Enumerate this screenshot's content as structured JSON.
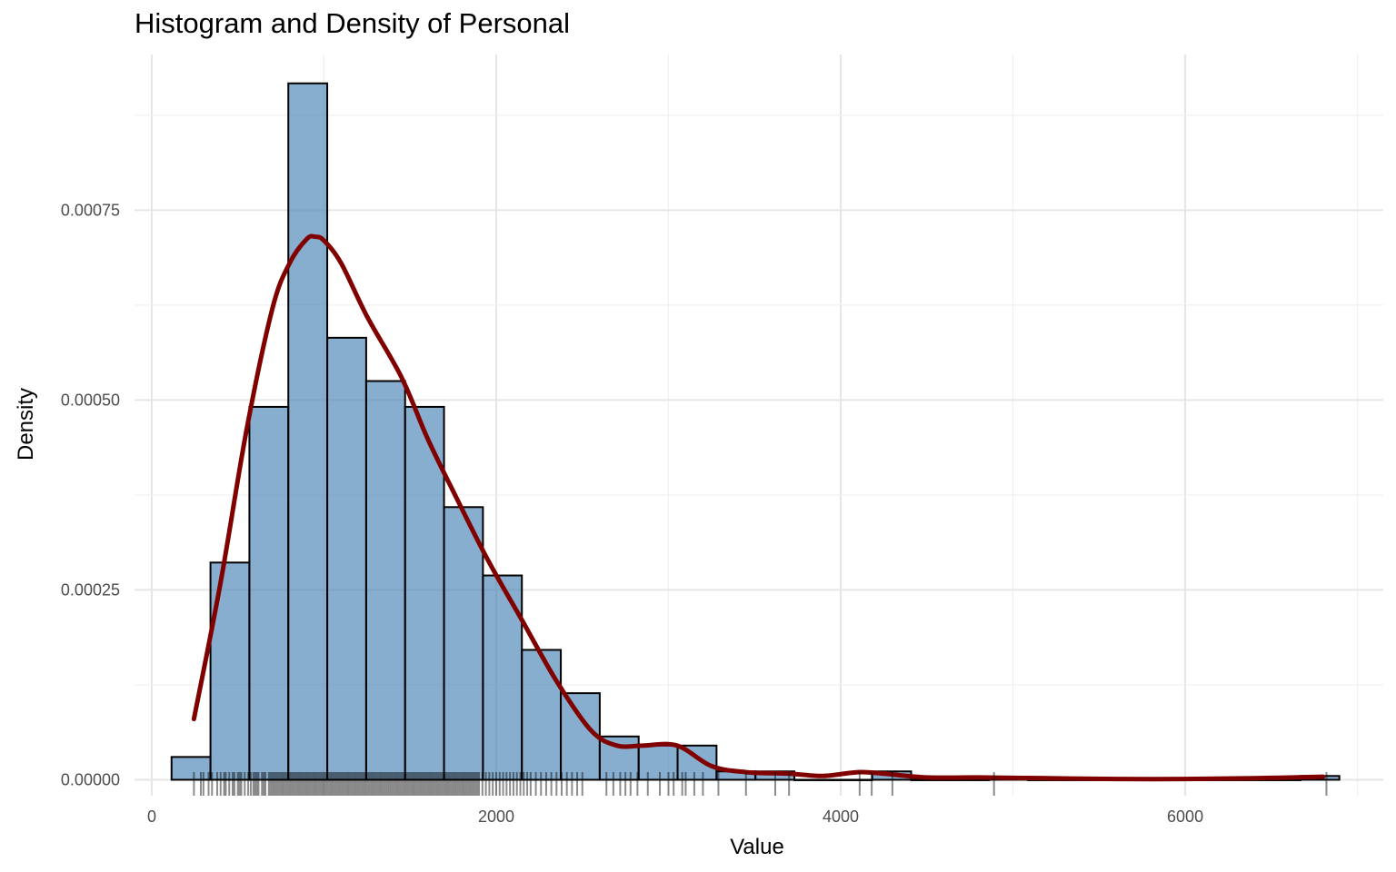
{
  "chart_data": {
    "type": "histogram",
    "title": "Histogram and Density of Personal",
    "xlabel": "Value",
    "ylabel": "Density",
    "xlim": [
      -100,
      7150
    ],
    "ylim": [
      -2.1e-05,
      0.000955
    ],
    "x_ticks": [
      0,
      2000,
      4000,
      6000
    ],
    "x_tick_labels": [
      "0",
      "2000",
      "4000",
      "6000"
    ],
    "y_ticks": [
      0,
      0.00025,
      0.0005,
      0.00075
    ],
    "y_tick_labels": [
      "0.00000",
      "0.00025",
      "0.00050",
      "0.00075"
    ],
    "grid": true,
    "bin_width": 226,
    "bins": [
      {
        "x0": 115,
        "x1": 341,
        "density": 3e-05
      },
      {
        "x0": 341,
        "x1": 567,
        "density": 0.000286
      },
      {
        "x0": 567,
        "x1": 793,
        "density": 0.000491
      },
      {
        "x0": 793,
        "x1": 1019,
        "density": 0.000917
      },
      {
        "x0": 1019,
        "x1": 1245,
        "density": 0.000582
      },
      {
        "x0": 1245,
        "x1": 1471,
        "density": 0.000525
      },
      {
        "x0": 1471,
        "x1": 1697,
        "density": 0.000491
      },
      {
        "x0": 1697,
        "x1": 1923,
        "density": 0.000359
      },
      {
        "x0": 1923,
        "x1": 2149,
        "density": 0.000269
      },
      {
        "x0": 2149,
        "x1": 2375,
        "density": 0.000171
      },
      {
        "x0": 2375,
        "x1": 2601,
        "density": 0.000114
      },
      {
        "x0": 2601,
        "x1": 2827,
        "density": 5.7e-05
      },
      {
        "x0": 2827,
        "x1": 3053,
        "density": 4.5e-05
      },
      {
        "x0": 3053,
        "x1": 3279,
        "density": 4.5e-05
      },
      {
        "x0": 3279,
        "x1": 3505,
        "density": 1.1e-05
      },
      {
        "x0": 3505,
        "x1": 3731,
        "density": 1.1e-05
      },
      {
        "x0": 3731,
        "x1": 3957,
        "density": 0.0
      },
      {
        "x0": 3957,
        "x1": 4183,
        "density": 0.0
      },
      {
        "x0": 4183,
        "x1": 4409,
        "density": 1.1e-05
      },
      {
        "x0": 4409,
        "x1": 4635,
        "density": 0.0
      },
      {
        "x0": 4635,
        "x1": 4861,
        "density": 0.0
      },
      {
        "x0": 4861,
        "x1": 5087,
        "density": 4e-06
      },
      {
        "x0": 5087,
        "x1": 5313,
        "density": 0.0
      },
      {
        "x0": 5313,
        "x1": 5539,
        "density": 0.0
      },
      {
        "x0": 5539,
        "x1": 5765,
        "density": 0.0
      },
      {
        "x0": 5765,
        "x1": 5991,
        "density": 0.0
      },
      {
        "x0": 5991,
        "x1": 6217,
        "density": 0.0
      },
      {
        "x0": 6217,
        "x1": 6443,
        "density": 0.0
      },
      {
        "x0": 6443,
        "x1": 6669,
        "density": 0.0
      },
      {
        "x0": 6669,
        "x1": 6895,
        "density": 5e-06
      }
    ],
    "density_curve": {
      "x": [
        245,
        400,
        550,
        700,
        800,
        900,
        950,
        1000,
        1100,
        1250,
        1450,
        1600,
        1750,
        1950,
        2150,
        2350,
        2550,
        2700,
        2850,
        3050,
        3250,
        3450,
        3700,
        3900,
        4100,
        4250,
        4500,
        4800,
        5200,
        5600,
        6000,
        6400,
        6800
      ],
      "y": [
        8e-05,
        0.00026,
        0.00046,
        0.00062,
        0.00068,
        0.000712,
        0.000715,
        0.00071,
        0.00068,
        0.00061,
        0.00053,
        0.00045,
        0.00038,
        0.00029,
        0.00021,
        0.00013,
        6.5e-05,
        4.5e-05,
        4.5e-05,
        4.5e-05,
        1.8e-05,
        1e-05,
        8e-06,
        5e-06,
        1e-05,
        8e-06,
        3e-06,
        3e-06,
        2e-06,
        1e-06,
        1e-06,
        2e-06,
        4e-06
      ]
    },
    "rug_values": [
      245,
      285,
      300,
      330,
      350,
      380,
      400,
      420,
      430,
      450,
      470,
      480,
      500,
      510,
      520,
      540,
      560,
      575,
      590,
      600,
      610,
      620,
      640,
      650,
      660,
      680,
      690,
      700,
      710,
      720,
      730,
      740,
      750,
      760,
      770,
      780,
      790,
      800,
      810,
      820,
      830,
      840,
      850,
      860,
      870,
      880,
      890,
      900,
      910,
      920,
      930,
      940,
      950,
      960,
      970,
      980,
      990,
      1000,
      1010,
      1020,
      1030,
      1040,
      1050,
      1060,
      1070,
      1080,
      1090,
      1100,
      1110,
      1120,
      1130,
      1140,
      1150,
      1160,
      1170,
      1180,
      1190,
      1200,
      1210,
      1220,
      1230,
      1240,
      1250,
      1260,
      1270,
      1280,
      1290,
      1300,
      1310,
      1320,
      1330,
      1340,
      1350,
      1360,
      1370,
      1380,
      1390,
      1400,
      1410,
      1420,
      1430,
      1440,
      1450,
      1460,
      1470,
      1480,
      1490,
      1500,
      1510,
      1520,
      1530,
      1540,
      1550,
      1560,
      1570,
      1580,
      1590,
      1600,
      1610,
      1620,
      1630,
      1640,
      1650,
      1660,
      1670,
      1680,
      1690,
      1700,
      1710,
      1720,
      1730,
      1740,
      1750,
      1760,
      1770,
      1780,
      1790,
      1800,
      1810,
      1820,
      1830,
      1840,
      1850,
      1860,
      1870,
      1880,
      1890,
      1900,
      1920,
      1940,
      1960,
      1980,
      2000,
      2020,
      2040,
      2060,
      2080,
      2100,
      2120,
      2140,
      2160,
      2180,
      2200,
      2230,
      2260,
      2290,
      2320,
      2350,
      2380,
      2410,
      2440,
      2470,
      2500,
      2640,
      2680,
      2720,
      2750,
      2780,
      2820,
      2880,
      2950,
      3000,
      3030,
      3080,
      3100,
      3150,
      3200,
      3290,
      3450,
      3620,
      3700,
      4110,
      4180,
      4300,
      4890,
      6820
    ]
  }
}
